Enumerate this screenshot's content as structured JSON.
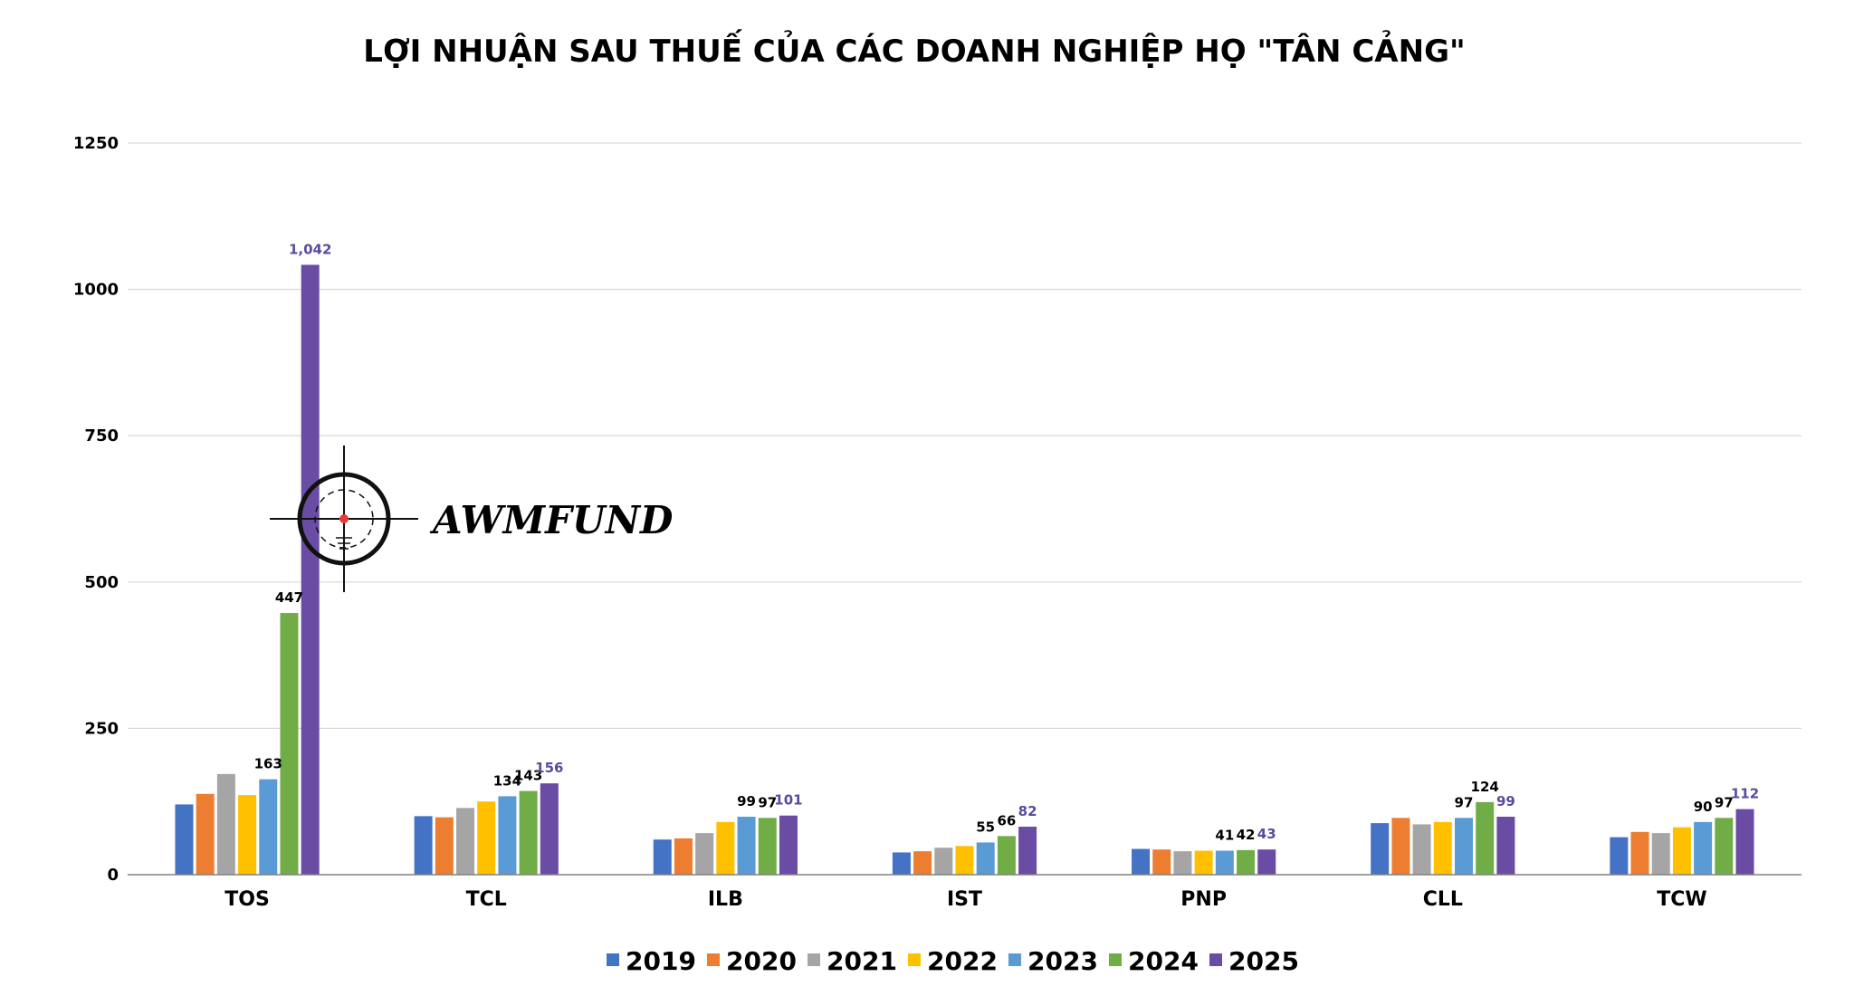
{
  "watermark": {
    "brand": "AWMFUND"
  },
  "chart_data": {
    "type": "bar",
    "title": "LỢI NHUẬN SAU THUẾ CỦA CÁC DOANH NGHIỆP HỌ \"TÂN CẢNG\"",
    "xlabel": "",
    "ylabel": "",
    "ylim": [
      0,
      1250
    ],
    "yticks": [
      0,
      250,
      500,
      750,
      1000,
      1250
    ],
    "grid": true,
    "legend_position": "bottom",
    "categories": [
      "TOS",
      "TCL",
      "ILB",
      "IST",
      "PNP",
      "CLL",
      "TCW"
    ],
    "series": [
      {
        "name": "2019",
        "color": "#4472C4",
        "values": [
          120,
          100,
          60,
          38,
          44,
          88,
          64
        ]
      },
      {
        "name": "2020",
        "color": "#ED7D31",
        "values": [
          138,
          98,
          62,
          40,
          43,
          97,
          73
        ]
      },
      {
        "name": "2021",
        "color": "#A5A5A5",
        "values": [
          172,
          114,
          71,
          46,
          40,
          86,
          71
        ]
      },
      {
        "name": "2022",
        "color": "#FFC000",
        "values": [
          136,
          125,
          90,
          49,
          41,
          90,
          81
        ]
      },
      {
        "name": "2023",
        "color": "#5B9BD5",
        "values": [
          163,
          134,
          99,
          55,
          41,
          97,
          90
        ]
      },
      {
        "name": "2024",
        "color": "#70AD47",
        "values": [
          447,
          143,
          97,
          66,
          42,
          124,
          97
        ]
      },
      {
        "name": "2025",
        "color": "#6A4CA5",
        "values": [
          1042,
          156,
          101,
          82,
          43,
          99,
          112
        ]
      }
    ],
    "data_labels": [
      {
        "category": 0,
        "series": 4,
        "text": "163",
        "color": "#000000"
      },
      {
        "category": 0,
        "series": 5,
        "text": "447",
        "color": "#000000"
      },
      {
        "category": 0,
        "series": 6,
        "text": "1,042",
        "color": "#5B4A9E"
      },
      {
        "category": 1,
        "series": 4,
        "text": "134",
        "color": "#000000"
      },
      {
        "category": 1,
        "series": 5,
        "text": "143",
        "color": "#000000"
      },
      {
        "category": 1,
        "series": 6,
        "text": "156",
        "color": "#5B4A9E"
      },
      {
        "category": 2,
        "series": 4,
        "text": "99",
        "color": "#000000"
      },
      {
        "category": 2,
        "series": 5,
        "text": "97",
        "color": "#000000"
      },
      {
        "category": 2,
        "series": 6,
        "text": "101",
        "color": "#5B4A9E"
      },
      {
        "category": 3,
        "series": 4,
        "text": "55",
        "color": "#000000"
      },
      {
        "category": 3,
        "series": 5,
        "text": "66",
        "color": "#000000"
      },
      {
        "category": 3,
        "series": 6,
        "text": "82",
        "color": "#5B4A9E"
      },
      {
        "category": 4,
        "series": 4,
        "text": "41",
        "color": "#000000"
      },
      {
        "category": 4,
        "series": 5,
        "text": "42",
        "color": "#000000"
      },
      {
        "category": 4,
        "series": 6,
        "text": "43",
        "color": "#5B4A9E"
      },
      {
        "category": 5,
        "series": 4,
        "text": "97",
        "color": "#000000"
      },
      {
        "category": 5,
        "series": 5,
        "text": "124",
        "color": "#000000"
      },
      {
        "category": 5,
        "series": 6,
        "text": "99",
        "color": "#5B4A9E"
      },
      {
        "category": 6,
        "series": 4,
        "text": "90",
        "color": "#000000"
      },
      {
        "category": 6,
        "series": 5,
        "text": "97",
        "color": "#000000"
      },
      {
        "category": 6,
        "series": 6,
        "text": "112",
        "color": "#5B4A9E"
      }
    ]
  }
}
